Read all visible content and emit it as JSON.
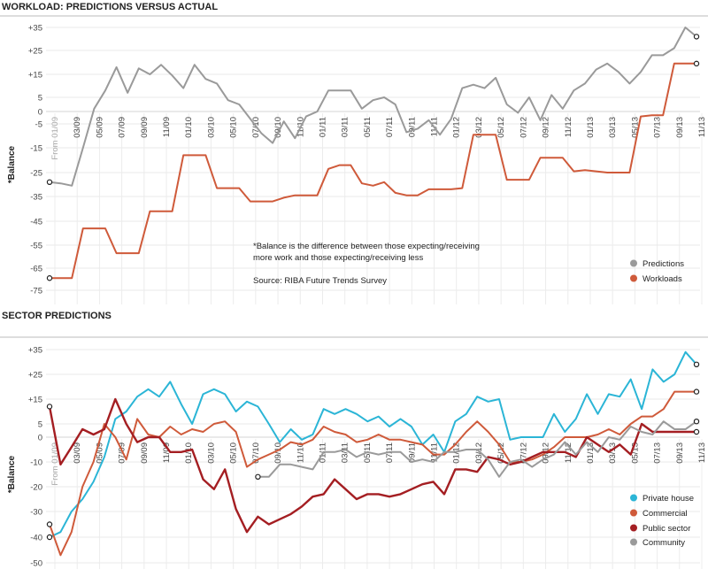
{
  "chart_data": [
    {
      "type": "line",
      "title": "WORKLOAD: PREDICTIONS VERSUS ACTUAL",
      "ylabel": "*Balance",
      "ylim": [
        -75,
        35
      ],
      "y_ticks": [
        "+35",
        "+25",
        "+15",
        "5",
        "0",
        "-5",
        "-15",
        "-25",
        "-35",
        "-45",
        "-55",
        "-65",
        "-75"
      ],
      "x_ticks": [
        "From 01/09",
        "03/09",
        "05/09",
        "07/09",
        "09/09",
        "11/09",
        "01/10",
        "03/10",
        "05/10",
        "07/10",
        "09/10",
        "11/10",
        "01/11",
        "03/11",
        "05/11",
        "07/11",
        "09/11",
        "11/11",
        "01/12",
        "03/12",
        "05/12",
        "07/12",
        "09/12",
        "11/12",
        "01/13",
        "03/13",
        "05/13",
        "07/13",
        "09/13",
        "11/13"
      ],
      "notes": [
        "*Balance is the difference between those expecting/receiving",
        "more work and those expecting/receiving less",
        "Source: RIBA Future Trends Survey"
      ],
      "legend_position": "bottom-right",
      "series": [
        {
          "name": "Predictions",
          "color": "#9a9a9a",
          "values": [
            -29,
            -29.5,
            -30.5,
            -15,
            1,
            8,
            18,
            7,
            17.5,
            15,
            19,
            14.5,
            9,
            19,
            13,
            11,
            4,
            2.5,
            -3,
            -9,
            -13,
            -4,
            -11,
            -2,
            0,
            8,
            8,
            8,
            1,
            4,
            5,
            2.5,
            -8.5,
            -7,
            -3.5,
            -9.5,
            -3,
            9,
            10.5,
            9,
            13.5,
            2.5,
            -0.5,
            5,
            -3.5,
            6,
            1,
            8,
            11,
            17,
            19.5,
            16,
            11,
            16,
            23,
            23,
            26,
            35,
            31
          ]
        },
        {
          "name": "Workloads",
          "color": "#cf5a3a",
          "values": [
            -69.5,
            -69.5,
            -69.5,
            -48,
            -48,
            -48,
            -58.5,
            -58.5,
            -58.5,
            -41,
            -41,
            -41,
            -18,
            -18,
            -18,
            -31.5,
            -31.5,
            -31.5,
            -37,
            -37,
            -37,
            -35.5,
            -34.5,
            -34.5,
            -34.5,
            -23.5,
            -22,
            -22,
            -29.5,
            -30.5,
            -29,
            -33.5,
            -34.5,
            -34.5,
            -32,
            -32,
            -32,
            -31.5,
            -9.5,
            -9.5,
            -9.5,
            -28,
            -28,
            -28,
            -19,
            -19,
            -19,
            -24.5,
            -24,
            -24.5,
            -25,
            -25,
            -25,
            -2,
            -1.5,
            -1.5,
            19.5,
            19.5,
            19.5
          ]
        }
      ]
    },
    {
      "type": "line",
      "title": "SECTOR PREDICTIONS",
      "ylabel": "*Balance",
      "ylim": [
        -50,
        35
      ],
      "y_ticks": [
        "+35",
        "+25",
        "+15",
        "5",
        "0",
        "-10",
        "-20",
        "-30",
        "-40",
        "-50"
      ],
      "x_ticks": [
        "From 01/09",
        "03/09",
        "05/09",
        "07/09",
        "09/09",
        "11/09",
        "01/10",
        "03/10",
        "05/10",
        "07/10",
        "09/10",
        "11/10",
        "01/11",
        "03/11",
        "05/11",
        "07/11",
        "09/11",
        "11/11",
        "01/12",
        "03/12",
        "05/12",
        "07/12",
        "09/12",
        "11/12",
        "01/13",
        "03/13",
        "05/13",
        "07/13",
        "09/13",
        "11/13"
      ],
      "legend_position": "bottom-right",
      "series": [
        {
          "name": "Private house",
          "color": "#2bb5d6",
          "values": [
            -40,
            -38,
            -30,
            -25,
            -18,
            -8,
            7,
            10,
            16,
            19,
            16,
            22,
            13,
            5,
            17,
            19,
            17,
            10,
            14,
            12,
            5,
            -2,
            3,
            -1,
            1,
            11,
            9,
            11,
            9,
            6,
            8,
            4,
            7,
            4,
            -3,
            1,
            -6,
            6,
            9,
            16,
            14,
            15,
            -1,
            0,
            0,
            0,
            9,
            2,
            7,
            17,
            9,
            17,
            16,
            23,
            11,
            27,
            22,
            25,
            34,
            29
          ]
        },
        {
          "name": "Commercial",
          "color": "#cf5a3a",
          "values": [
            -35,
            -47,
            -38,
            -20,
            -10,
            5,
            0,
            -9,
            7,
            1,
            0,
            4,
            1,
            3,
            2,
            5,
            6,
            2,
            -12,
            -9,
            -7,
            -5,
            -2,
            -3,
            -1,
            4,
            2,
            1,
            -2,
            -1,
            1,
            -1,
            -1,
            -2,
            -3,
            -7,
            -7,
            -3,
            2,
            6,
            2,
            -3,
            -10,
            -10,
            -9,
            -7,
            -4,
            0,
            0,
            0,
            1,
            3,
            1,
            5,
            8,
            8,
            11,
            18,
            18,
            18
          ]
        },
        {
          "name": "Public sector",
          "color": "#a41e22",
          "values": [
            12,
            -11,
            -4,
            3,
            1,
            3,
            15,
            5,
            -2,
            0,
            0,
            -6,
            -6,
            -5,
            -17,
            -21,
            -13,
            -29,
            -38,
            -32,
            -35,
            -33,
            -31,
            -28,
            -24,
            -23,
            -17,
            -21,
            -25,
            -23,
            -23,
            -24,
            -23,
            -21,
            -19,
            -18,
            -23,
            -13,
            -13,
            -14,
            -8,
            -9,
            -11,
            -10,
            -8,
            -6,
            -6,
            -6,
            -8,
            0,
            -3,
            -6,
            -3,
            -7,
            5,
            2,
            2,
            2,
            2,
            2
          ]
        },
        {
          "name": "Community",
          "color": "#9a9a9a",
          "values": [
            -16,
            -16,
            -11,
            -11,
            -12,
            -13,
            -6,
            -6,
            -5,
            -8,
            -6,
            -7,
            -6,
            -6,
            -10,
            -9,
            -10,
            -6,
            -6,
            -5,
            -5,
            -9,
            -16,
            -10,
            -9,
            -12,
            -9,
            -7,
            -2,
            -7,
            -2,
            -6,
            0,
            -1,
            4,
            2,
            1,
            6,
            3,
            3,
            6
          ]
        }
      ]
    }
  ]
}
